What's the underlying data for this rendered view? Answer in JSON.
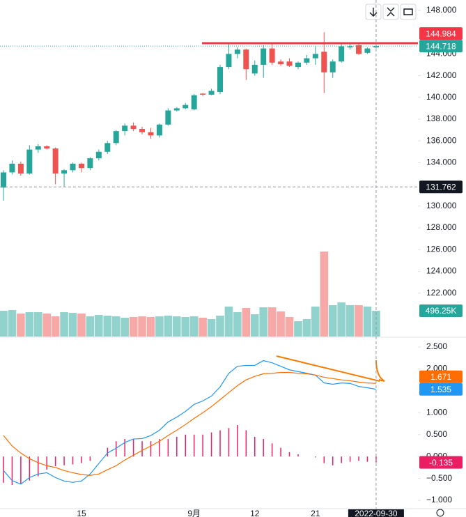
{
  "chart_data": [
    {
      "type": "candlestick",
      "categories": [
        null,
        null,
        null,
        null,
        null,
        null,
        null,
        null,
        null,
        "15",
        null,
        null,
        null,
        null,
        null,
        null,
        null,
        null,
        null,
        null,
        null,
        null,
        "9月",
        null,
        null,
        null,
        null,
        null,
        null,
        "12",
        null,
        null,
        null,
        null,
        null,
        null,
        "21",
        null,
        null,
        null,
        null,
        null,
        null,
        "2022-09-30"
      ],
      "ohlc": [
        [
          131.7,
          133.3,
          130.5,
          133.1
        ],
        [
          133.1,
          134.2,
          132.9,
          133.9
        ],
        [
          133.9,
          134.1,
          132.8,
          133.0
        ],
        [
          133.0,
          135.6,
          132.9,
          135.2
        ],
        [
          135.2,
          135.7,
          134.9,
          135.5
        ],
        [
          135.5,
          135.6,
          135.2,
          135.3
        ],
        [
          135.3,
          135.4,
          132.0,
          133.0
        ],
        [
          133.0,
          133.4,
          131.8,
          133.3
        ],
        [
          133.3,
          134.0,
          133.1,
          133.9
        ],
        [
          133.9,
          134.0,
          133.1,
          133.5
        ],
        [
          133.5,
          134.5,
          133.3,
          134.4
        ],
        [
          134.4,
          135.2,
          134.2,
          135.0
        ],
        [
          135.0,
          136.0,
          134.8,
          135.8
        ],
        [
          135.8,
          137.0,
          135.6,
          136.9
        ],
        [
          136.9,
          137.6,
          136.5,
          137.4
        ],
        [
          137.4,
          137.7,
          136.9,
          137.1
        ],
        [
          137.1,
          137.3,
          136.6,
          136.8
        ],
        [
          136.8,
          137.2,
          136.2,
          136.5
        ],
        [
          136.5,
          137.6,
          136.3,
          137.5
        ],
        [
          137.5,
          139.0,
          137.4,
          138.8
        ],
        [
          138.8,
          139.1,
          138.7,
          139.0
        ],
        [
          139.0,
          139.5,
          138.9,
          139.3
        ],
        [
          138.9,
          140.3,
          138.8,
          140.2
        ],
        [
          140.35,
          140.4,
          140.1,
          140.25
        ],
        [
          140.25,
          140.8,
          140.2,
          140.6
        ],
        [
          140.5,
          143.0,
          140.3,
          142.8
        ],
        [
          142.8,
          144.9,
          142.6,
          144.0
        ],
        [
          144.0,
          144.6,
          143.6,
          144.4
        ],
        [
          144.4,
          144.5,
          141.6,
          142.6
        ],
        [
          142.2,
          143.4,
          142.0,
          143.0
        ],
        [
          143.0,
          144.8,
          141.8,
          144.5
        ],
        [
          144.5,
          144.9,
          143.0,
          143.2
        ],
        [
          143.3,
          143.5,
          142.9,
          143.05
        ],
        [
          143.3,
          143.6,
          142.8,
          142.9
        ],
        [
          142.8,
          143.3,
          142.6,
          143.2
        ],
        [
          143.2,
          143.9,
          143.0,
          143.6
        ],
        [
          143.6,
          144.7,
          143.0,
          144.0
        ],
        [
          144.2,
          146.0,
          140.4,
          142.3
        ],
        [
          142.3,
          143.5,
          141.8,
          143.3
        ],
        [
          143.3,
          144.9,
          143.2,
          144.7
        ],
        [
          144.6,
          144.9,
          144.4,
          144.7
        ],
        [
          144.8,
          144.9,
          143.9,
          144.0
        ],
        [
          144.1,
          144.6,
          144.0,
          144.5
        ],
        [
          144.6,
          144.9,
          144.5,
          144.718
        ]
      ],
      "up_color": "#26a69a",
      "down_color": "#ef5350",
      "ylim": [
        118,
        148.96
      ],
      "yticks": [
        {
          "value": 148,
          "label": "148.000"
        },
        {
          "value": 144,
          "label": "144.000"
        },
        {
          "value": 142,
          "label": "142.000"
        },
        {
          "value": 140,
          "label": "140.000"
        },
        {
          "value": 138,
          "label": "138.000"
        },
        {
          "value": 136,
          "label": "136.000"
        },
        {
          "value": 134,
          "label": "134.000"
        },
        {
          "value": 130,
          "label": "130.000"
        },
        {
          "value": 128,
          "label": "128.000"
        },
        {
          "value": 126,
          "label": "126.000"
        },
        {
          "value": 124,
          "label": "124.000"
        },
        {
          "value": 122,
          "label": "122.000"
        }
      ],
      "volume": {
        "values": [
          496000,
          510000,
          443000,
          469000,
          469000,
          443000,
          389000,
          469000,
          456000,
          443000,
          389000,
          416000,
          402000,
          389000,
          362000,
          376000,
          389000,
          376000,
          389000,
          402000,
          389000,
          376000,
          389000,
          362000,
          335000,
          402000,
          577000,
          469000,
          550000,
          429000,
          563000,
          563000,
          483000,
          376000,
          295000,
          335000,
          577000,
          1636000,
          604000,
          657000,
          604000,
          604000,
          577000,
          496250
        ],
        "value_labels": [
          null,
          null,
          null,
          null,
          null,
          null,
          null,
          null,
          null,
          null,
          null,
          null,
          null,
          null,
          null,
          null,
          null,
          null,
          null,
          null,
          null,
          null,
          null,
          null,
          null,
          null,
          null,
          null,
          null,
          null,
          null,
          null,
          null,
          null,
          null,
          null,
          null,
          null,
          null,
          null,
          null,
          null,
          null,
          "496.25K"
        ],
        "ylim": [
          0,
          6480000
        ],
        "up_color": "#92d2cc",
        "down_color": "#f7a9a7"
      },
      "hline": {
        "value": 144.984,
        "color": "#f23645"
      },
      "crosshair": {
        "price": 131.762
      }
    },
    {
      "type": "macd",
      "series": [
        {
          "color": "#2196f3",
          "values": [
            -0.32,
            -0.55,
            -0.63,
            -0.48,
            -0.4,
            -0.37,
            -0.48,
            -0.56,
            -0.59,
            -0.56,
            -0.4,
            -0.16,
            0.08,
            0.19,
            0.32,
            0.4,
            0.41,
            0.48,
            0.6,
            0.79,
            0.9,
            1.03,
            1.19,
            1.27,
            1.38,
            1.59,
            1.9,
            2.06,
            2.08,
            2.08,
            2.19,
            2.14,
            2.06,
            1.98,
            1.94,
            1.9,
            1.86,
            1.68,
            1.65,
            1.68,
            1.67,
            1.6,
            1.57,
            1.535
          ]
        },
        {
          "color": "#ff6d00",
          "values": [
            0.48,
            0.24,
            0.08,
            -0.05,
            -0.14,
            -0.21,
            -0.25,
            -0.32,
            -0.37,
            -0.41,
            -0.43,
            -0.4,
            -0.3,
            -0.21,
            -0.08,
            0.03,
            0.14,
            0.24,
            0.35,
            0.48,
            0.6,
            0.73,
            0.87,
            1.0,
            1.14,
            1.3,
            1.46,
            1.62,
            1.75,
            1.83,
            1.89,
            1.9,
            1.92,
            1.92,
            1.9,
            1.89,
            1.86,
            1.81,
            1.78,
            1.75,
            1.73,
            1.7,
            1.68,
            1.671
          ]
        }
      ],
      "histogram": {
        "color": "#e91e63",
        "values": [
          -0.6,
          -0.65,
          -0.62,
          -0.55,
          -0.45,
          -0.3,
          -0.22,
          -0.2,
          -0.18,
          -0.15,
          -0.1,
          0.0,
          0.2,
          0.35,
          0.4,
          0.4,
          0.35,
          0.35,
          0.4,
          0.4,
          0.45,
          0.5,
          0.5,
          0.5,
          0.55,
          0.6,
          0.65,
          0.72,
          0.6,
          0.45,
          0.4,
          0.3,
          0.2,
          0.1,
          0.05,
          0.0,
          -0.02,
          -0.15,
          -0.2,
          -0.15,
          -0.12,
          -0.1,
          -0.12,
          -0.135
        ]
      },
      "ylim": [
        -1.19,
        2.66
      ],
      "yticks": [
        {
          "value": 2.5,
          "label": "2.500"
        },
        {
          "value": 2,
          "label": "2.000"
        },
        {
          "value": 1,
          "label": "1.000"
        },
        {
          "value": 0.5,
          "label": "0.500"
        },
        {
          "value": 0,
          "label": "0.000"
        },
        {
          "value": -0.5,
          "label": "−0.500"
        },
        {
          "value": -1,
          "label": "−1.000"
        }
      ]
    }
  ]
}
